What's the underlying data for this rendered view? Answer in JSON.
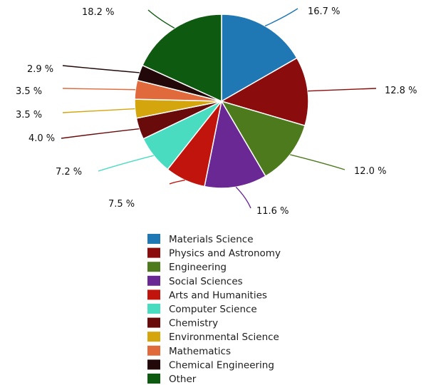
{
  "chart_data": {
    "type": "pie",
    "categories": [
      "Materials Science",
      "Physics and Astronomy",
      "Engineering",
      "Social Sciences",
      "Arts and Humanities",
      "Computer Science",
      "Chemistry",
      "Environmental Science",
      "Mathematics",
      "Chemical Engineering",
      "Other"
    ],
    "values": [
      16.7,
      12.8,
      12.0,
      11.6,
      7.5,
      7.2,
      4.0,
      3.5,
      3.5,
      2.9,
      18.2
    ],
    "value_labels": [
      "16.7 %",
      "12.8 %",
      "12.0 %",
      "11.6 %",
      "7.5 %",
      "7.2 %",
      "4.0 %",
      "3.5 %",
      "3.5 %",
      "2.9 %",
      "18.2 %"
    ],
    "colors": [
      "#1f77b4",
      "#8b0c0c",
      "#4e7a1e",
      "#6a2894",
      "#c0140d",
      "#49dcc0",
      "#6a0b0b",
      "#d4a50c",
      "#e06a3c",
      "#220808",
      "#0e5a10"
    ],
    "start_angle_deg": 0,
    "direction": "clockwise",
    "legend_position": "bottom"
  }
}
